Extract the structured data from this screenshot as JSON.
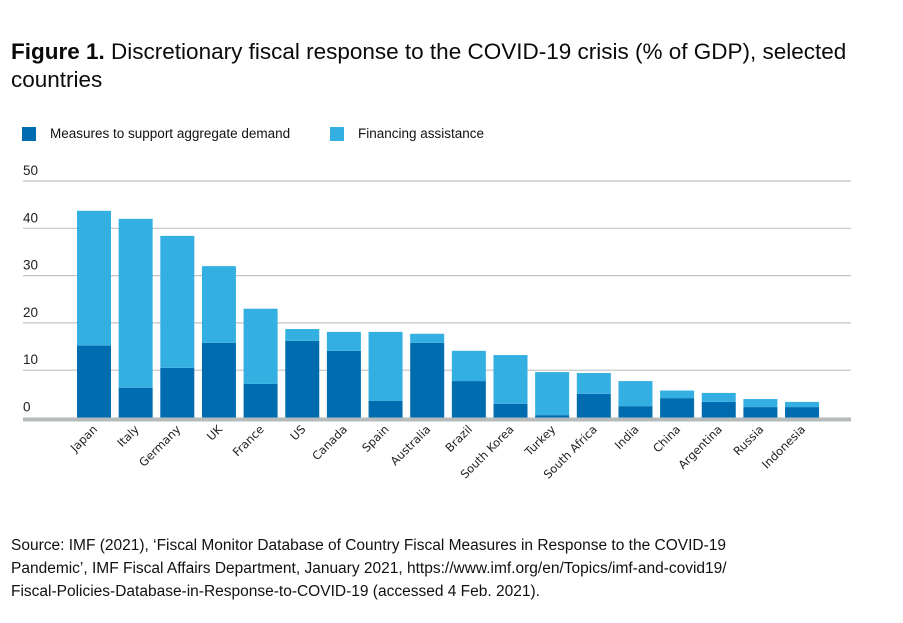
{
  "figure": {
    "label": "Figure 1.",
    "title": "Discretionary fiscal response to the COVID-19 crisis (% of GDP), selected countries"
  },
  "legend": [
    {
      "name": "Measures to support aggregate demand",
      "color": "#006cb0"
    },
    {
      "name": "Financing assistance",
      "color": "#33afe2"
    }
  ],
  "source": {
    "line1": "Source: IMF (2021), ‘Fiscal Monitor Database of Country Fiscal Measures in Response to the COVID-19",
    "line2": "Pandemic’, IMF Fiscal Affairs Department, January 2021, https://www.imf.org/en/Topics/imf-and-covid19/",
    "line3": "Fiscal-Policies-Database-in-Response-to-COVID-19 (accessed 4 Feb. 2021)."
  },
  "chart_data": {
    "type": "bar",
    "stacked": true,
    "title": "Discretionary fiscal response to the COVID-19 crisis (% of GDP), selected countries",
    "xlabel": "",
    "ylabel": "",
    "ylim": [
      0,
      50
    ],
    "yticks": [
      0,
      10,
      20,
      30,
      40,
      50
    ],
    "grid": true,
    "legend_position": "top-left",
    "categories": [
      "Japan",
      "Italy",
      "Germany",
      "UK",
      "France",
      "US",
      "Canada",
      "Spain",
      "Australia",
      "Brazil",
      "South Korea",
      "Turkey",
      "South Africa",
      "India",
      "China",
      "Argentina",
      "Russia",
      "Indonesia"
    ],
    "series": [
      {
        "name": "Measures to support aggregate demand",
        "color": "#006cb0",
        "values": [
          15.2,
          6.3,
          10.5,
          15.8,
          7.1,
          16.2,
          14.1,
          3.5,
          15.8,
          7.7,
          2.9,
          0.5,
          5.0,
          2.4,
          4.1,
          3.3,
          2.2,
          2.2
        ]
      },
      {
        "name": "Financing assistance",
        "color": "#33afe2",
        "values": [
          28.5,
          35.7,
          27.9,
          16.2,
          15.9,
          2.5,
          4.0,
          14.6,
          1.9,
          6.4,
          10.3,
          9.1,
          4.4,
          5.3,
          1.6,
          1.9,
          1.7,
          1.1
        ]
      }
    ]
  }
}
